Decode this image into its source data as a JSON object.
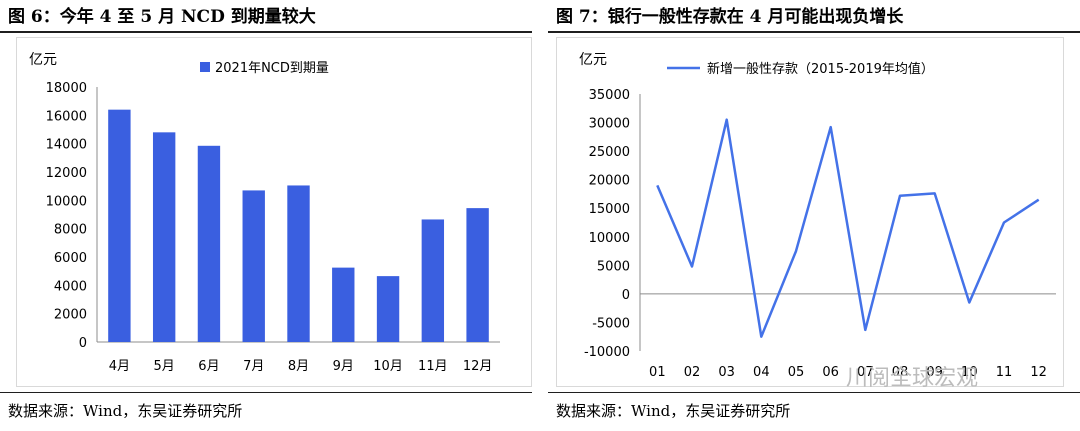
{
  "left": {
    "title": "图 6：今年 4 至 5 月 NCD 到期量较大",
    "source": "数据来源：Wind，东吴证券研究所"
  },
  "right": {
    "title": "图 7：银行一般性存款在 4 月可能出现负增长",
    "source": "数据来源：Wind，东吴证券研究所"
  },
  "watermark": "川阅全球宏观",
  "colors": {
    "bar": "#3a5fe0",
    "line": "#4472e8",
    "gridline": "#d9d9d9"
  },
  "chart_data": [
    {
      "type": "bar",
      "unit_label": "亿元",
      "categories": [
        "4月",
        "5月",
        "6月",
        "7月",
        "8月",
        "9月",
        "10月",
        "11月",
        "12月"
      ],
      "series": [
        {
          "name": "2021年NCD到期量",
          "values": [
            16400,
            14800,
            13850,
            10700,
            11050,
            5250,
            4650,
            8650,
            9450
          ]
        }
      ],
      "y_ticks": [
        0,
        2000,
        4000,
        6000,
        8000,
        10000,
        12000,
        14000,
        16000,
        18000
      ],
      "ylim": [
        0,
        18000
      ],
      "legend_position": "top-center",
      "grid": false
    },
    {
      "type": "line",
      "unit_label": "亿元",
      "categories": [
        "01",
        "02",
        "03",
        "04",
        "05",
        "06",
        "07",
        "08",
        "09",
        "10",
        "11",
        "12"
      ],
      "series": [
        {
          "name": "新增一般性存款（2015-2019年均值）",
          "values": [
            19000,
            4800,
            30500,
            -7500,
            7500,
            29200,
            -6300,
            17200,
            17600,
            -1500,
            12500,
            16500
          ]
        }
      ],
      "y_ticks": [
        -10000,
        -5000,
        0,
        5000,
        10000,
        15000,
        20000,
        25000,
        30000,
        35000
      ],
      "ylim": [
        -10000,
        35000
      ],
      "legend_position": "top-center",
      "grid": false
    }
  ]
}
